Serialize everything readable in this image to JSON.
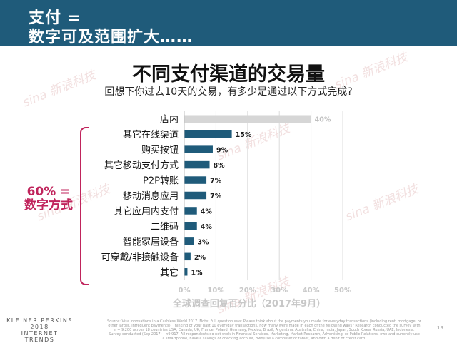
{
  "header": {
    "line1": "支付 =",
    "line2": "数字可及范围扩大……"
  },
  "callout": {
    "line1": "60% =",
    "line2": "数字方式"
  },
  "watermark_text": "sina 新浪科技",
  "footer": {
    "logo_line1": "KLEINER PERKINS",
    "logo_line2": "2018",
    "logo_line3": "INTERNET TRENDS",
    "source": "Source: Visa Innovations in a Cashless World 2017. Note: Full question was: Please think about the payments you made for everyday transactions (including rent, mortgage, or other larger, infrequent payments). Thinking of your past 10 everyday transactions, how many were made in each of the following ways? Research conducted the survey with n = 9,200 across 18 countries USA, Canada, UK, France, Poland, Germany, Mexico, Brazil, Argentina, Australia, China, India, Japan, South Korea, Russia, UAE, Indonesia. Survey conducted (Sep 2017) – n9,917. All respondents do not work in Financial Services, Marketing, Market Research, Advertising, or Public Relations, own and currently use a smartphone, have a savings or checking account, own/use a computer or tablet, and own a debit or credit card.",
    "page": "19"
  },
  "chart_data": {
    "type": "bar",
    "orientation": "horizontal",
    "title": "不同支付渠道的交易量",
    "subtitle": "回想下你过去10天的交易，有多少是通过以下方式完成?",
    "xlabel": "全球调查回复百分比（2017年9月）",
    "ylabel": "",
    "xlim": [
      0,
      50
    ],
    "x_ticks": [
      "0%",
      "10%",
      "20%",
      "30%",
      "40%",
      "50%"
    ],
    "grid": true,
    "categories": [
      "店内",
      "其它在线渠道",
      "购买按钮",
      "其它移动支付方式",
      "P2P转账",
      "移动消息应用",
      "其它应用内支付",
      "二维码",
      "智能家居设备",
      "可穿戴/非接触设备",
      "其它"
    ],
    "values": [
      40,
      15,
      9,
      8,
      7,
      7,
      4,
      4,
      3,
      2,
      1
    ],
    "value_labels": [
      "40%",
      "15%",
      "9%",
      "8%",
      "7%",
      "7%",
      "4%",
      "4%",
      "3%",
      "2%",
      "1%"
    ],
    "colors": {
      "highlight": "#d6d6d6",
      "bars": "#1f5b7a",
      "highlight_label": "#bfbfbf",
      "label": "#1a1a1a"
    }
  }
}
